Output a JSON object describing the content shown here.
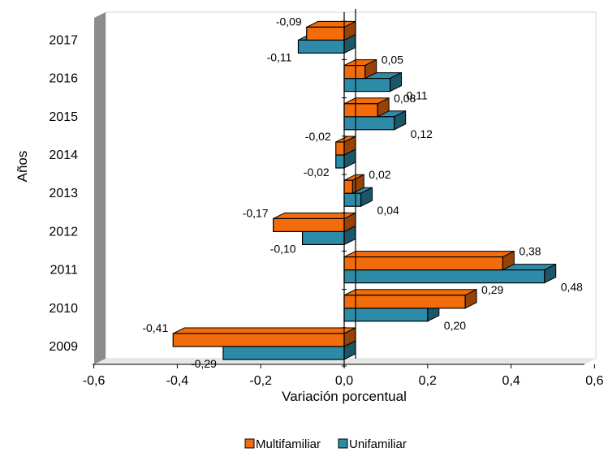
{
  "chart_data": {
    "type": "bar",
    "orientation": "horizontal",
    "style": "3d",
    "categories": [
      "2009",
      "2010",
      "2011",
      "2012",
      "2013",
      "2014",
      "2015",
      "2016",
      "2017"
    ],
    "series": [
      {
        "name": "Multifamiliar",
        "color": "#F36C0C",
        "values": [
          -0.41,
          0.29,
          0.38,
          -0.17,
          0.02,
          -0.02,
          0.08,
          0.05,
          -0.09
        ],
        "labels": [
          "-0,41",
          "0,29",
          "0,38",
          "-0,17",
          "0,02",
          "-0,02",
          "0,08",
          "0,05",
          "-0,09"
        ]
      },
      {
        "name": "Unifamiliar",
        "color": "#2E8BA7",
        "values": [
          -0.29,
          0.2,
          0.48,
          -0.1,
          0.04,
          -0.02,
          0.12,
          0.11,
          -0.11
        ],
        "labels": [
          "-0,29",
          "0,20",
          "0,48",
          "-0,10",
          "0,04",
          "-0,02",
          "0,12",
          "0,11",
          "-0,11"
        ]
      }
    ],
    "xlabel": "Variación porcentual",
    "ylabel": "Años",
    "xlim": [
      -0.6,
      0.6
    ],
    "xticks": [
      -0.6,
      -0.4,
      -0.2,
      0.0,
      0.2,
      0.4,
      0.6
    ],
    "xtick_labels": [
      "-0,6",
      "-0,4",
      "-0,2",
      "0,0",
      "0,2",
      "0,4",
      "0,6"
    ],
    "grid": false,
    "legend": "bottom-center"
  }
}
